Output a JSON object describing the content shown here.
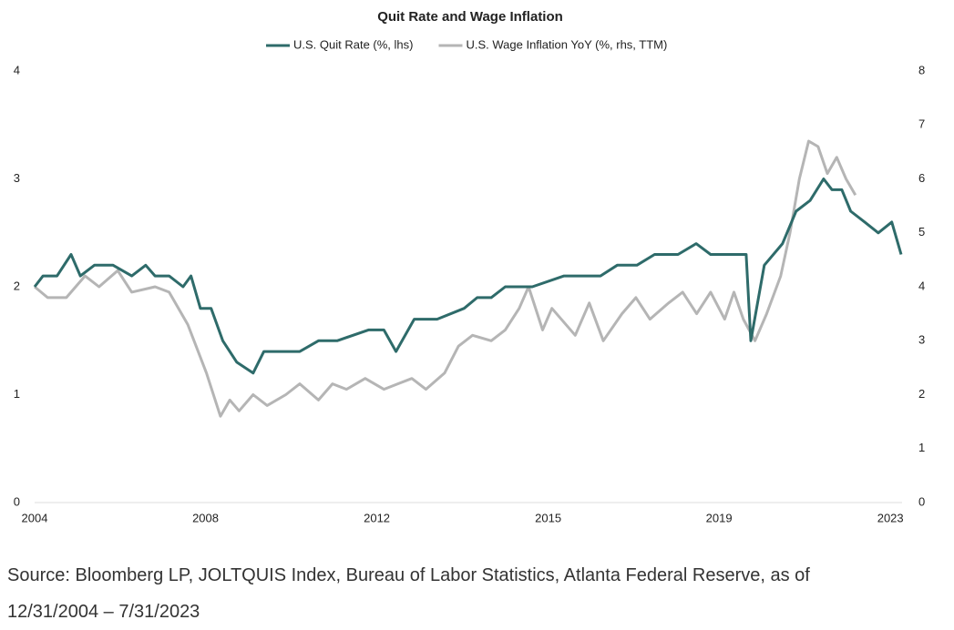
{
  "chart_data": {
    "type": "line",
    "title": "Quit Rate and Wage Inflation",
    "source": "Source: Bloomberg LP, JOLTQUIS Index, Bureau of Labor Statistics, Atlanta Federal Reserve, as of 12/31/2004 – 7/31/2023",
    "xlim": [
      2004.92,
      2023.5
    ],
    "xticks": [
      {
        "value": 2004.92,
        "label": "2004"
      },
      {
        "value": 2008.58,
        "label": "2008"
      },
      {
        "value": 2012.25,
        "label": "2012"
      },
      {
        "value": 2015.92,
        "label": "2015"
      },
      {
        "value": 2019.58,
        "label": "2019"
      },
      {
        "value": 2023.25,
        "label": "2023"
      }
    ],
    "ylim": [
      0,
      4
    ],
    "yticks": [
      0,
      1,
      2,
      3,
      4
    ],
    "y2lim": [
      0,
      8
    ],
    "y2ticks": [
      0,
      1,
      2,
      3,
      4,
      5,
      6,
      7,
      8
    ],
    "series": [
      {
        "name": "U.S. Quit Rate (%, lhs)",
        "color": "#2e6b6a",
        "axis": "y",
        "x": [
          2004.92,
          2005.1,
          2005.4,
          2005.7,
          2005.9,
          2006.2,
          2006.6,
          2007.0,
          2007.3,
          2007.5,
          2007.8,
          2008.1,
          2008.27,
          2008.47,
          2008.7,
          2008.95,
          2009.25,
          2009.6,
          2009.83,
          2010.22,
          2010.6,
          2011.0,
          2011.4,
          2012.07,
          2012.4,
          2012.66,
          2013.05,
          2013.54,
          2014.12,
          2014.4,
          2014.7,
          2015.0,
          2015.58,
          2016.26,
          2016.7,
          2017.04,
          2017.4,
          2017.82,
          2018.2,
          2018.7,
          2019.09,
          2019.4,
          2019.77,
          2020.16,
          2020.26,
          2020.55,
          2020.94,
          2021.23,
          2021.53,
          2021.82,
          2022.0,
          2022.21,
          2022.4,
          2022.7,
          2022.99,
          2023.28,
          2023.48
        ],
        "values": [
          2.0,
          2.1,
          2.1,
          2.3,
          2.1,
          2.2,
          2.2,
          2.1,
          2.2,
          2.1,
          2.1,
          2.0,
          2.1,
          1.8,
          1.8,
          1.5,
          1.3,
          1.2,
          1.4,
          1.4,
          1.4,
          1.5,
          1.5,
          1.6,
          1.6,
          1.4,
          1.7,
          1.7,
          1.8,
          1.9,
          1.9,
          2.0,
          2.0,
          2.1,
          2.1,
          2.1,
          2.2,
          2.2,
          2.3,
          2.3,
          2.4,
          2.3,
          2.3,
          2.3,
          1.5,
          2.2,
          2.4,
          2.7,
          2.8,
          3.0,
          2.9,
          2.9,
          2.7,
          2.6,
          2.5,
          2.6,
          2.3
        ]
      },
      {
        "name": "U.S. Wage Inflation YoY (%, rhs, TTM)",
        "color": "#b5b5b5",
        "axis": "y2",
        "x": [
          2004.92,
          2005.2,
          2005.6,
          2006.0,
          2006.3,
          2006.7,
          2007.0,
          2007.5,
          2007.8,
          2008.2,
          2008.6,
          2008.9,
          2009.1,
          2009.3,
          2009.6,
          2009.9,
          2010.3,
          2010.6,
          2011.0,
          2011.3,
          2011.6,
          2012.0,
          2012.4,
          2012.7,
          2013.0,
          2013.3,
          2013.7,
          2014.0,
          2014.3,
          2014.7,
          2015.0,
          2015.3,
          2015.5,
          2015.8,
          2016.0,
          2016.5,
          2016.8,
          2017.1,
          2017.5,
          2017.8,
          2018.1,
          2018.5,
          2018.8,
          2019.1,
          2019.4,
          2019.7,
          2019.9,
          2020.1,
          2020.35,
          2020.6,
          2020.9,
          2021.1,
          2021.3,
          2021.5,
          2021.7,
          2021.9,
          2022.1,
          2022.3,
          2022.5
        ],
        "values": [
          4.0,
          3.8,
          3.8,
          4.2,
          4.0,
          4.3,
          3.9,
          4.0,
          3.9,
          3.3,
          2.4,
          1.6,
          1.9,
          1.7,
          2.0,
          1.8,
          2.0,
          2.2,
          1.9,
          2.2,
          2.1,
          2.3,
          2.1,
          2.2,
          2.3,
          2.1,
          2.4,
          2.9,
          3.1,
          3.0,
          3.2,
          3.6,
          4.0,
          3.2,
          3.6,
          3.1,
          3.7,
          3.0,
          3.5,
          3.8,
          3.4,
          3.7,
          3.9,
          3.5,
          3.9,
          3.4,
          3.9,
          3.4,
          3.0,
          3.5,
          4.2,
          5.0,
          6.0,
          6.7,
          6.6,
          6.1,
          6.4,
          6.0,
          5.7
        ]
      }
    ]
  }
}
